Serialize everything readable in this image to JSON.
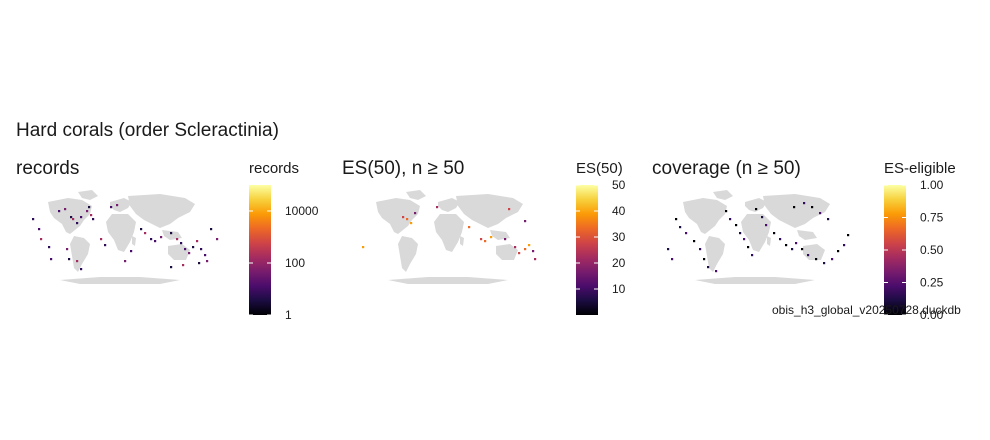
{
  "title": "Hard corals (order Scleractinia)",
  "caption": "obis_h3_global_v20250728.duckdb",
  "colors": {
    "land": "#d9d9d9",
    "ocean": "#ffffff",
    "inferno": [
      "#000004",
      "#1b0c41",
      "#4a0c6b",
      "#781c6d",
      "#a52c60",
      "#cf4446",
      "#ed6925",
      "#fb9b06",
      "#f7d13d",
      "#fcffa4"
    ]
  },
  "chart_data": [
    {
      "type": "heatmap",
      "subtitle": "records",
      "legend_title": "records",
      "scale": "log",
      "legend_range": [
        1,
        100000
      ],
      "legend_ticks": [
        {
          "value": 1,
          "label": "1"
        },
        {
          "value": 100,
          "label": "100"
        },
        {
          "value": 10000,
          "label": "10000"
        }
      ]
    },
    {
      "type": "heatmap",
      "subtitle": "ES(50), n ≥ 50",
      "legend_title": "ES(50)",
      "scale": "linear",
      "legend_range": [
        0,
        50
      ],
      "legend_ticks": [
        {
          "value": 10,
          "label": "10"
        },
        {
          "value": 20,
          "label": "20"
        },
        {
          "value": 30,
          "label": "30"
        },
        {
          "value": 40,
          "label": "40"
        },
        {
          "value": 50,
          "label": "50"
        }
      ]
    },
    {
      "type": "heatmap",
      "subtitle": "coverage (n ≥ 50)",
      "legend_title": "ES-eligible",
      "scale": "linear",
      "legend_range": [
        0,
        1
      ],
      "legend_ticks": [
        {
          "value": 0,
          "label": "0.00"
        },
        {
          "value": 0.25,
          "label": "0.25"
        },
        {
          "value": 0.5,
          "label": "0.50"
        },
        {
          "value": 0.75,
          "label": "0.75"
        },
        {
          "value": 1,
          "label": "1.00"
        }
      ]
    }
  ]
}
